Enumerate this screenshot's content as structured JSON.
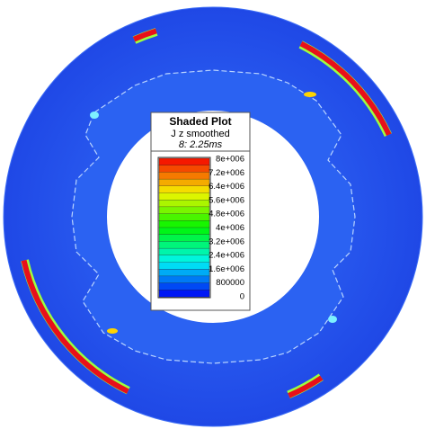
{
  "header": {
    "title": "Shaded Plot",
    "subtitle": "J z smoothed",
    "time": "8: 2.25ms"
  },
  "legend": {
    "labels": [
      "8e+006",
      "7.2e+006",
      "6.4e+006",
      "5.6e+006",
      "4.8e+006",
      "4e+006",
      "3.2e+006",
      "2.4e+006",
      "1.6e+006",
      "800000",
      "0"
    ]
  }
}
